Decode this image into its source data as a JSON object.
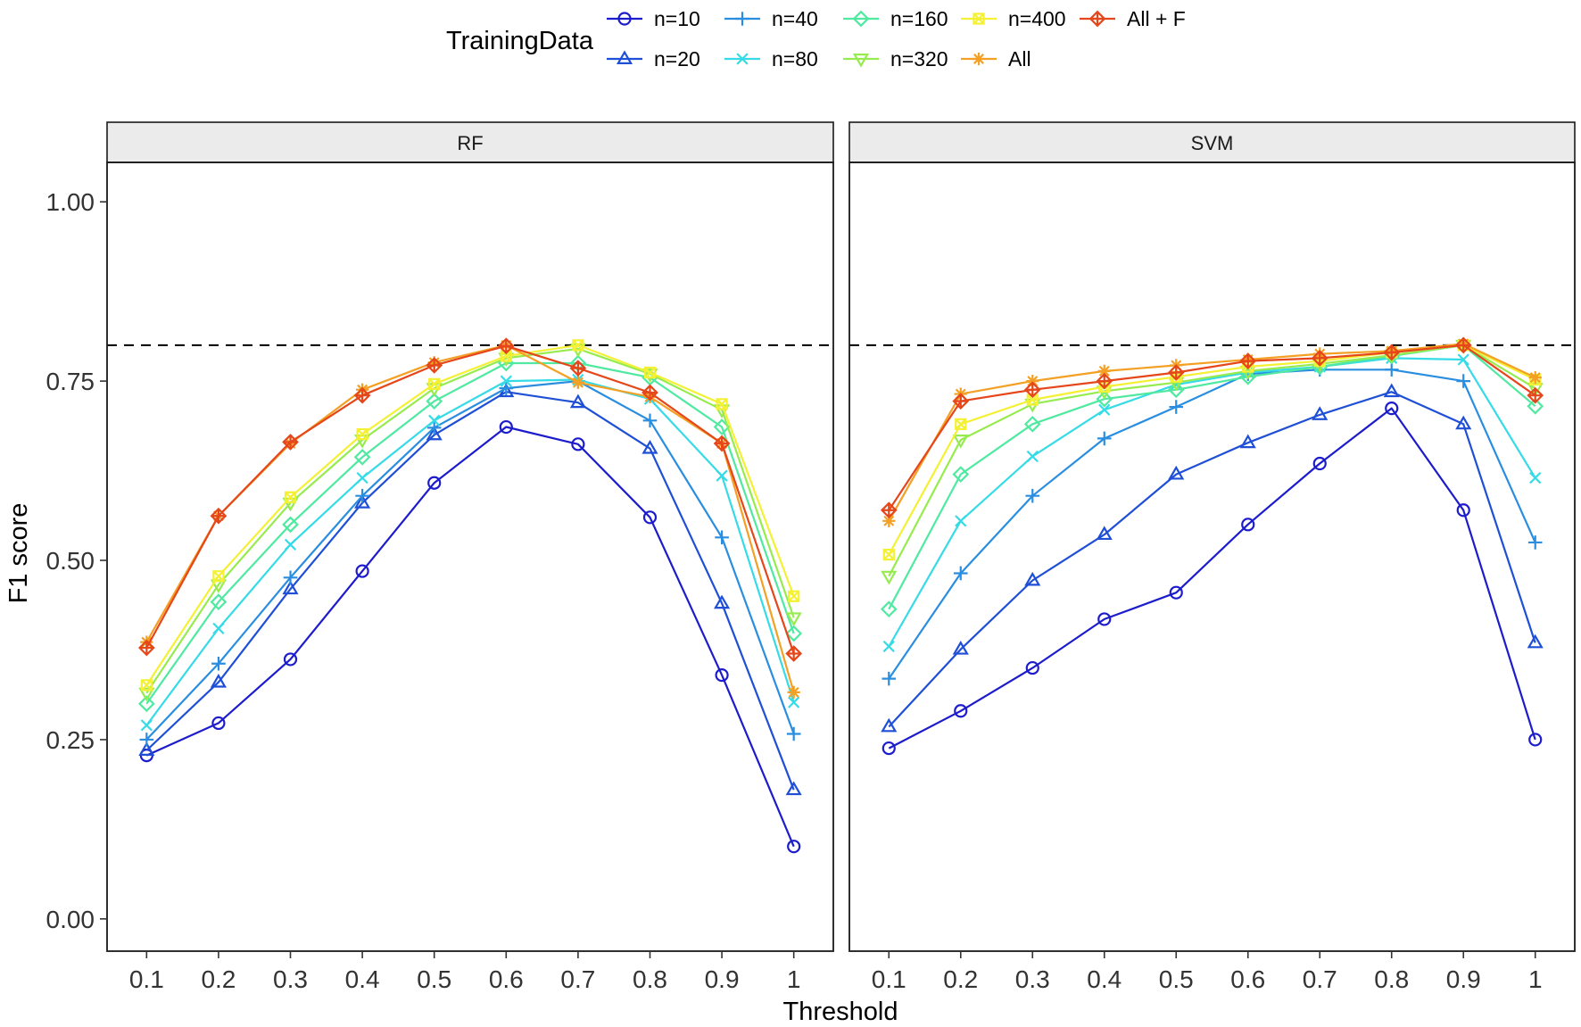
{
  "chart_data": {
    "type": "line",
    "xlabel": "Threshold",
    "ylabel": "F1 score",
    "x": [
      0.1,
      0.2,
      0.3,
      0.4,
      0.5,
      0.6,
      0.7,
      0.8,
      0.9,
      1
    ],
    "x_tick_labels": [
      "0.1",
      "0.2",
      "0.3",
      "0.4",
      "0.5",
      "0.6",
      "0.7",
      "0.8",
      "0.9",
      "1"
    ],
    "ylim": [
      -0.045,
      1.055
    ],
    "y_ticks": [
      0,
      0.25,
      0.5,
      0.75,
      1
    ],
    "y_tick_labels": [
      "0.00",
      "0.25",
      "0.50",
      "0.75",
      "1.00"
    ],
    "reference_line": 0.8,
    "legend_title": "TrainingData",
    "legend_position": "top",
    "series_styles": [
      {
        "name": "n=10",
        "color": "#1c1ccc",
        "marker": "circle"
      },
      {
        "name": "n=20",
        "color": "#1f4fd6",
        "marker": "triangle"
      },
      {
        "name": "n=40",
        "color": "#2a8ee0",
        "marker": "plus"
      },
      {
        "name": "n=80",
        "color": "#35dbe6",
        "marker": "cross"
      },
      {
        "name": "n=160",
        "color": "#4fe9a0",
        "marker": "diamond"
      },
      {
        "name": "n=320",
        "color": "#96ec4e",
        "marker": "triangle-down"
      },
      {
        "name": "n=400",
        "color": "#f4f033",
        "marker": "square-cross"
      },
      {
        "name": "All",
        "color": "#f3a024",
        "marker": "asterisk"
      },
      {
        "name": "All + F",
        "color": "#e5461a",
        "marker": "diamond-plus"
      }
    ],
    "panels": [
      {
        "title": "RF",
        "series": [
          {
            "name": "n=10",
            "values": [
              0.228,
              0.273,
              0.362,
              0.485,
              0.608,
              0.686,
              0.662,
              0.56,
              0.34,
              0.101
            ]
          },
          {
            "name": "n=20",
            "values": [
              0.235,
              0.33,
              0.46,
              0.58,
              0.675,
              0.735,
              0.72,
              0.656,
              0.44,
              0.18
            ]
          },
          {
            "name": "n=40",
            "values": [
              0.25,
              0.356,
              0.476,
              0.59,
              0.685,
              0.74,
              0.75,
              0.695,
              0.532,
              0.258
            ]
          },
          {
            "name": "n=80",
            "values": [
              0.27,
              0.405,
              0.522,
              0.615,
              0.695,
              0.75,
              0.752,
              0.725,
              0.618,
              0.302
            ]
          },
          {
            "name": "n=160",
            "values": [
              0.3,
              0.442,
              0.55,
              0.644,
              0.722,
              0.775,
              0.775,
              0.755,
              0.686,
              0.398
            ]
          },
          {
            "name": "n=320",
            "values": [
              0.315,
              0.466,
              0.58,
              0.668,
              0.74,
              0.782,
              0.795,
              0.76,
              0.71,
              0.42
            ]
          },
          {
            "name": "n=400",
            "values": [
              0.326,
              0.478,
              0.588,
              0.676,
              0.746,
              0.785,
              0.8,
              0.762,
              0.718,
              0.45
            ]
          },
          {
            "name": "All",
            "values": [
              0.386,
              0.562,
              0.663,
              0.738,
              0.776,
              0.8,
              0.748,
              0.728,
              0.663,
              0.316
            ]
          },
          {
            "name": "All + F",
            "values": [
              0.378,
              0.562,
              0.665,
              0.73,
              0.772,
              0.799,
              0.768,
              0.734,
              0.663,
              0.37
            ]
          }
        ]
      },
      {
        "title": "SVM",
        "series": [
          {
            "name": "n=10",
            "values": [
              0.238,
              0.29,
              0.35,
              0.418,
              0.455,
              0.55,
              0.635,
              0.712,
              0.57,
              0.25
            ]
          },
          {
            "name": "n=20",
            "values": [
              0.268,
              0.376,
              0.472,
              0.536,
              0.62,
              0.664,
              0.703,
              0.735,
              0.69,
              0.385
            ]
          },
          {
            "name": "n=40",
            "values": [
              0.335,
              0.482,
              0.59,
              0.67,
              0.714,
              0.76,
              0.766,
              0.766,
              0.75,
              0.525
            ]
          },
          {
            "name": "n=80",
            "values": [
              0.38,
              0.555,
              0.645,
              0.71,
              0.745,
              0.762,
              0.77,
              0.782,
              0.78,
              0.615
            ]
          },
          {
            "name": "n=160",
            "values": [
              0.432,
              0.62,
              0.69,
              0.725,
              0.738,
              0.756,
              0.77,
              0.785,
              0.8,
              0.715
            ]
          },
          {
            "name": "n=320",
            "values": [
              0.478,
              0.668,
              0.718,
              0.736,
              0.748,
              0.764,
              0.774,
              0.786,
              0.8,
              0.74
            ]
          },
          {
            "name": "n=400",
            "values": [
              0.508,
              0.69,
              0.724,
              0.742,
              0.756,
              0.77,
              0.778,
              0.79,
              0.8,
              0.752
            ]
          },
          {
            "name": "All",
            "values": [
              0.555,
              0.732,
              0.75,
              0.764,
              0.772,
              0.78,
              0.788,
              0.792,
              0.802,
              0.755
            ]
          },
          {
            "name": "All + F",
            "values": [
              0.57,
              0.722,
              0.738,
              0.75,
              0.762,
              0.778,
              0.782,
              0.79,
              0.8,
              0.73
            ]
          }
        ]
      }
    ]
  }
}
